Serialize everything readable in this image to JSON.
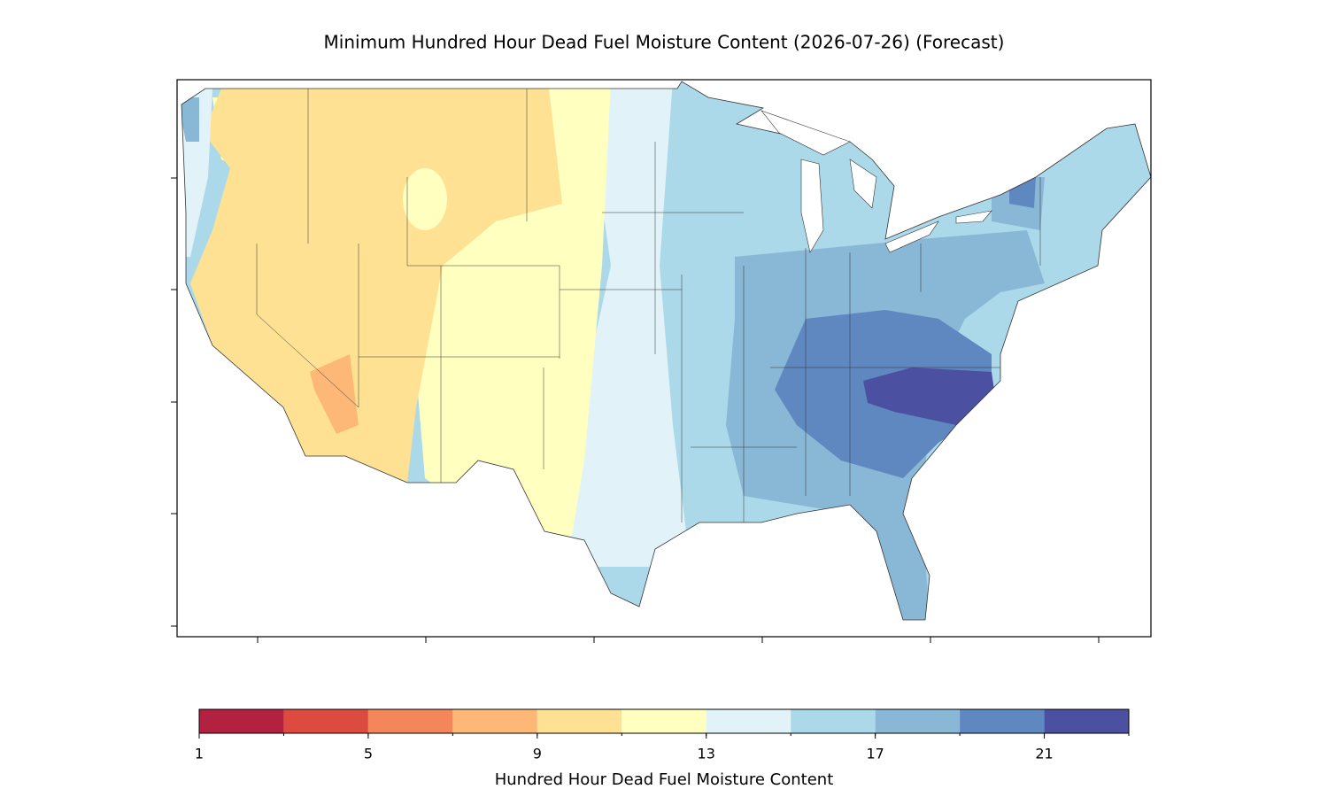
{
  "chart_data": {
    "type": "colormap",
    "title": "Minimum Hundred Hour Dead Fuel Moisture Content (2026-07-26) (Forecast)",
    "colorbar": {
      "label": "Hundred Hour Dead Fuel Moisture Content",
      "bounds": [
        1,
        3,
        5,
        7,
        9,
        11,
        13,
        15,
        17,
        19,
        21,
        23
      ],
      "colors": [
        "#b2213f",
        "#dd4b40",
        "#f4865c",
        "#fdb877",
        "#fee193",
        "#ffffc0",
        "#e1f3f8",
        "#abd9e9",
        "#89b7d6",
        "#5f87c0",
        "#4b51a0"
      ],
      "xlim": [
        1,
        23
      ],
      "xticks": [
        1,
        5,
        9,
        13,
        17,
        21
      ]
    }
  }
}
